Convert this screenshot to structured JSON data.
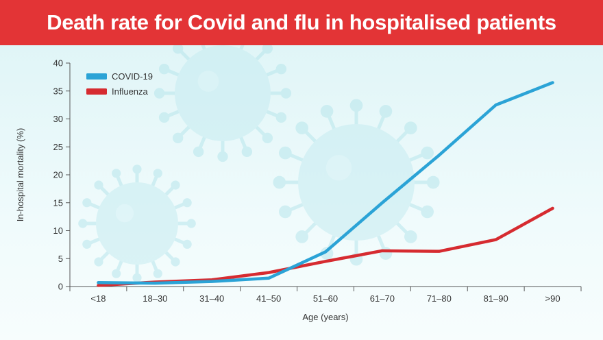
{
  "banner": {
    "title": "Death rate for Covid and flu in hospitalised patients",
    "background_color": "#e33436"
  },
  "chart_data": {
    "type": "line",
    "title": "Death rate for Covid and flu in hospitalised patients",
    "xlabel": "Age (years)",
    "ylabel": "In-hospital mortality (%)",
    "categories": [
      "<18",
      "18–30",
      "31–40",
      "41–50",
      "51–60",
      "61–70",
      "71–80",
      "81–90",
      ">90"
    ],
    "ylim": [
      0,
      40
    ],
    "yticks": [
      0,
      5,
      10,
      15,
      20,
      25,
      30,
      35,
      40
    ],
    "grid": false,
    "legend_position": "top-left",
    "series": [
      {
        "name": "COVID-19",
        "color": "#2ba3d6",
        "values": [
          0.7,
          0.6,
          0.9,
          1.5,
          6.2,
          15.0,
          23.5,
          32.5,
          36.5
        ]
      },
      {
        "name": "Influenza",
        "color": "#d62b30",
        "values": [
          0.2,
          0.8,
          1.2,
          2.5,
          4.5,
          6.4,
          6.3,
          8.4,
          14.0
        ]
      }
    ]
  }
}
